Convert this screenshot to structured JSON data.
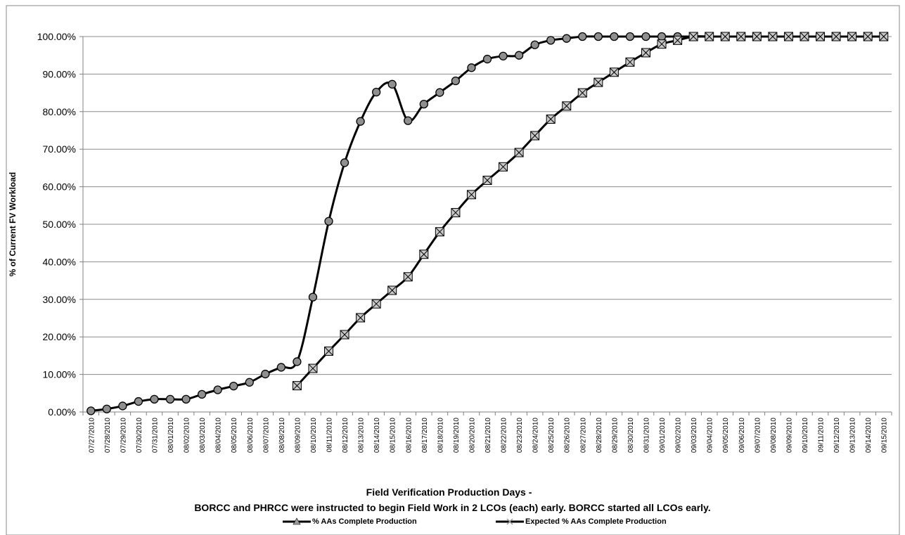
{
  "chart_data": {
    "type": "line",
    "title": "",
    "ylabel": "% of Current  FV Workload",
    "xlabel": "Field Verification Production Days -",
    "xlabel_line2": "BORCC and PHRCC were instructed to begin Field Work in 2 LCOs (each) early.  BORCC started all LCOs early.",
    "ylim": [
      0,
      100
    ],
    "y_ticks": [
      "0.00%",
      "10.00%",
      "20.00%",
      "30.00%",
      "40.00%",
      "50.00%",
      "60.00%",
      "70.00%",
      "80.00%",
      "90.00%",
      "100.00%"
    ],
    "grid": true,
    "legend_position": "bottom",
    "categories": [
      "07/27/2010",
      "07/28/2010",
      "07/29/2010",
      "07/30/2010",
      "07/31/2010",
      "08/01/2010",
      "08/02/2010",
      "08/03/2010",
      "08/04/2010",
      "08/05/2010",
      "08/06/2010",
      "08/07/2010",
      "08/08/2010",
      "08/09/2010",
      "08/10/2010",
      "08/11/2010",
      "08/12/2010",
      "08/13/2010",
      "08/14/2010",
      "08/15/2010",
      "08/16/2010",
      "08/17/2010",
      "08/18/2010",
      "08/19/2010",
      "08/20/2010",
      "08/21/2010",
      "08/22/2010",
      "08/23/2010",
      "08/24/2010",
      "08/25/2010",
      "08/26/2010",
      "08/27/2010",
      "08/28/2010",
      "08/29/2010",
      "08/30/2010",
      "08/31/2010",
      "09/01/2010",
      "09/02/2010",
      "09/03/2010",
      "09/04/2010",
      "09/05/2010",
      "09/06/2010",
      "09/07/2010",
      "09/08/2010",
      "09/09/2010",
      "09/10/2010",
      "09/11/2010",
      "09/12/2010",
      "09/13/2010",
      "09/14/2010",
      "09/15/2010"
    ],
    "series": [
      {
        "name": "% AAs Complete Production",
        "color": "#000000",
        "marker": "circle",
        "values": [
          0.3,
          0.8,
          1.6,
          2.8,
          3.4,
          3.4,
          3.4,
          4.7,
          5.9,
          6.9,
          7.9,
          10.1,
          11.9,
          13.4,
          30.6,
          50.8,
          66.4,
          77.4,
          85.2,
          87.3,
          77.6,
          82.0,
          85.1,
          88.2,
          91.7,
          94.0,
          94.8,
          95.0,
          97.8,
          99.0,
          99.5,
          100,
          100,
          100,
          100,
          100,
          100,
          100,
          100,
          100,
          100,
          100,
          100,
          100,
          100,
          100,
          100,
          100,
          100,
          100,
          100
        ]
      },
      {
        "name": "Expected % AAs Complete Production",
        "color": "#000000",
        "marker": "boxed-x",
        "values": [
          null,
          null,
          null,
          null,
          null,
          null,
          null,
          null,
          null,
          null,
          null,
          null,
          null,
          7.0,
          11.6,
          16.2,
          20.6,
          25.1,
          28.8,
          32.4,
          36.0,
          42.0,
          48.0,
          53.1,
          57.9,
          61.7,
          65.3,
          69.1,
          73.6,
          78.0,
          81.5,
          85.0,
          87.8,
          90.5,
          93.2,
          95.7,
          98.0,
          99.0,
          100,
          100,
          100,
          100,
          100,
          100,
          100,
          100,
          100,
          100,
          100,
          100,
          100
        ]
      }
    ]
  }
}
